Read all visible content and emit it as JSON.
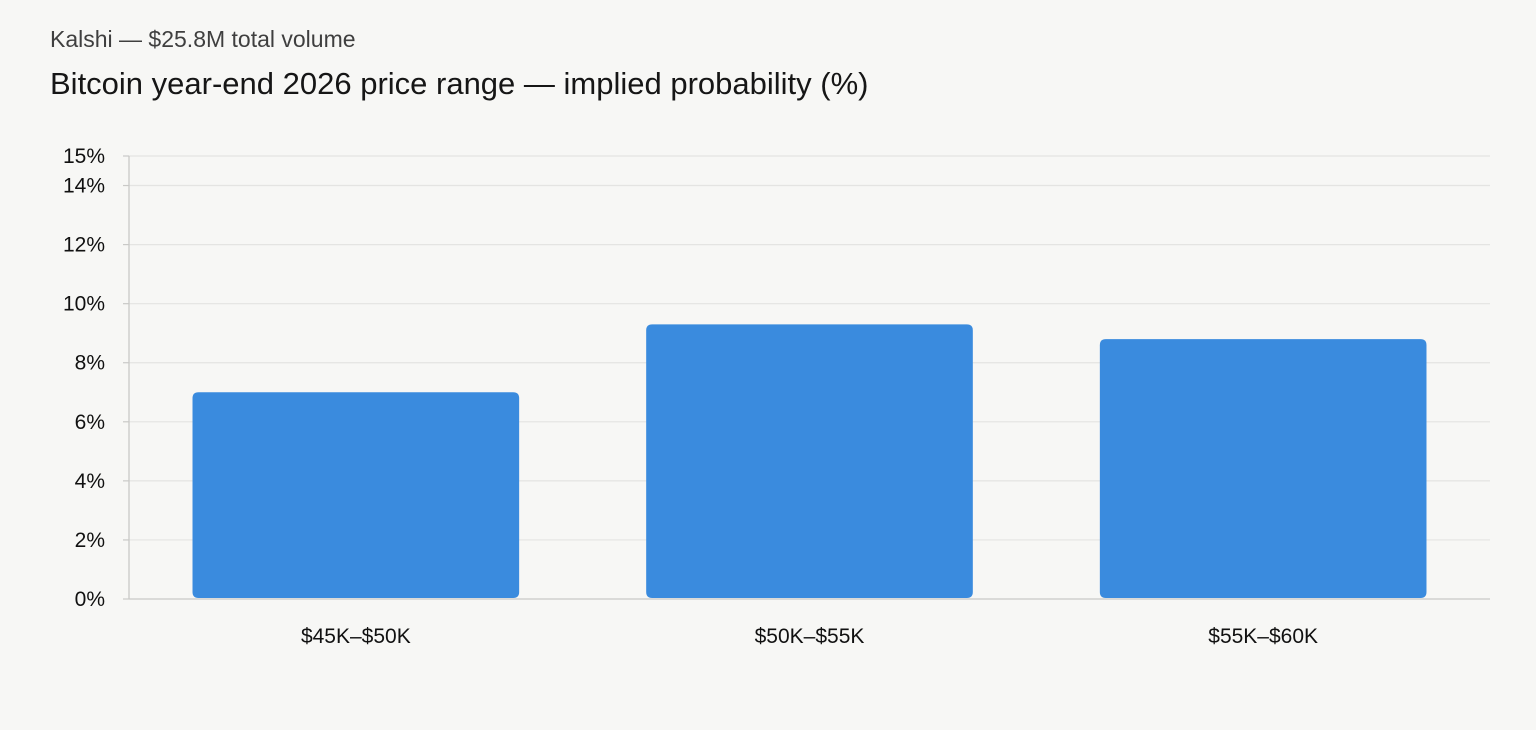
{
  "header": {
    "subtitle": "Kalshi — $25.8M total volume",
    "title": "Bitcoin year-end 2026 price range — implied probability (%)"
  },
  "colors": {
    "bar": "#3a8bde",
    "grid": "#e4e4e2",
    "axis": "#c9c9c7",
    "background": "#f7f7f5"
  },
  "chart_data": {
    "type": "bar",
    "categories": [
      "$45K–$50K",
      "$50K–$55K",
      "$55K–$60K"
    ],
    "values": [
      7.0,
      9.3,
      8.8
    ],
    "ylim": [
      0,
      15
    ],
    "y_ticks": [
      0,
      2,
      4,
      6,
      8,
      10,
      12,
      14,
      15
    ],
    "y_tick_labels": [
      "0%",
      "2%",
      "4%",
      "6%",
      "8%",
      "10%",
      "12%",
      "14%",
      "15%"
    ],
    "xlabel": "",
    "ylabel": "",
    "grid": true
  }
}
